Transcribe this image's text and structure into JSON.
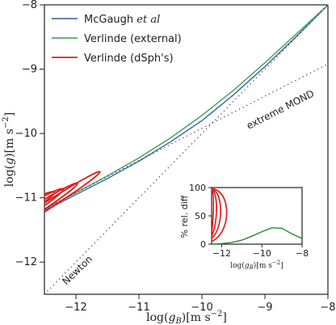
{
  "chart_data": [
    {
      "type": "line",
      "xlabel": "log(g_B)[m s^-2]",
      "ylabel": "log(g)[m s^-2]",
      "xlim": [
        -12.5,
        -8
      ],
      "ylim": [
        -12.5,
        -8
      ],
      "x_ticks": [
        -12,
        -11,
        -10,
        -9,
        -8
      ],
      "y_ticks": [
        -12,
        -11,
        -10,
        -9,
        -8
      ],
      "x_tick_labels": [
        "−12",
        "−11",
        "−10",
        "−9",
        "−8"
      ],
      "y_tick_labels": [
        "−12",
        "−11",
        "−10",
        "−9",
        "−8"
      ],
      "grid": false,
      "legend_position": "top-left",
      "series": [
        {
          "name": "McGaugh et al",
          "color": "#4c72b0",
          "x": [
            -12.5,
            -12,
            -11.5,
            -11,
            -10.5,
            -10,
            -9.5,
            -9,
            -8.5,
            -8
          ],
          "y": [
            -11.2,
            -10.95,
            -10.7,
            -10.43,
            -10.13,
            -9.8,
            -9.4,
            -8.96,
            -8.49,
            -8.0
          ]
        },
        {
          "name": "Verlinde (external)",
          "color": "#55a868",
          "x": [
            -12.5,
            -12,
            -11.5,
            -11,
            -10.5,
            -10,
            -9.5,
            -9,
            -8.5,
            -8
          ],
          "y": [
            -11.18,
            -10.92,
            -10.66,
            -10.38,
            -10.07,
            -9.72,
            -9.33,
            -8.9,
            -8.45,
            -8.0
          ]
        },
        {
          "name": "Verlinde (dSph's)",
          "color": "#e0201b",
          "contours": [
            {
              "x": [
                -12.5,
                -11.3,
                -11.35,
                -12.5
              ],
              "y": [
                -11.08,
                -10.33,
                -10.5,
                -11.22
              ]
            },
            {
              "x": [
                -12.5,
                -11.75,
                -11.85,
                -12.5
              ],
              "y": [
                -11.02,
                -10.6,
                -10.75,
                -11.18
              ]
            },
            {
              "x": [
                -12.5,
                -12.05,
                -12.15,
                -12.5
              ],
              "y": [
                -10.97,
                -10.75,
                -10.88,
                -11.12
              ]
            },
            {
              "x": [
                -12.5,
                -12.25,
                -12.33,
                -12.5
              ],
              "y": [
                -10.94,
                -10.85,
                -10.95,
                -11.06
              ]
            }
          ]
        },
        {
          "name": "extreme MOND",
          "style": "dotted",
          "color": "#222222",
          "x": [
            -12.5,
            -8
          ],
          "y": [
            -11.17,
            -8.92
          ]
        },
        {
          "name": "Newton",
          "style": "dotted",
          "color": "#222222",
          "x": [
            -12.5,
            -8
          ],
          "y": [
            -12.5,
            -8
          ]
        }
      ],
      "annotations": [
        "extreme MOND",
        "Newton"
      ]
    },
    {
      "type": "line",
      "xlabel": "log(g_B)[m s^-2]",
      "ylabel": "% rel. diff",
      "xlim": [
        -12.5,
        -8
      ],
      "ylim": [
        0,
        100
      ],
      "x_ticks": [
        -12,
        -10,
        -8
      ],
      "y_ticks": [
        0,
        50,
        100
      ],
      "x_tick_labels": [
        "−12",
        "−10",
        "−8"
      ],
      "y_tick_labels": [
        "0",
        "50",
        "100"
      ],
      "series": [
        {
          "name": "Verlinde (external)",
          "color": "#2a8a2a",
          "x": [
            -12.5,
            -12,
            -11.5,
            -11,
            -10.5,
            -10,
            -9.5,
            -9,
            -8.5,
            -8
          ],
          "y": [
            0,
            1,
            3,
            7,
            14,
            22,
            29,
            28,
            18,
            10
          ]
        },
        {
          "name": "Verlinde (dSph's)",
          "color": "#e0201b",
          "contours": [
            {
              "x": [
                -12.5,
                -11.5,
                -11.5,
                -12.5
              ],
              "y": [
                98,
                95,
                20,
                5
              ]
            },
            {
              "x": [
                -12.5,
                -11.9,
                -11.9,
                -12.5
              ],
              "y": [
                97,
                93,
                28,
                10
              ]
            },
            {
              "x": [
                -12.5,
                -12.15,
                -12.2,
                -12.5
              ],
              "y": [
                96,
                92,
                35,
                14
              ]
            },
            {
              "x": [
                -12.5,
                -12.35,
                -12.4,
                -12.5
              ],
              "y": [
                95,
                92,
                45,
                20
              ]
            }
          ]
        }
      ]
    }
  ],
  "legend": {
    "items": [
      {
        "label_pre": "McGaugh ",
        "label_it": "et al",
        "color": "#4c72b0"
      },
      {
        "label_pre": "Verlinde (external)",
        "label_it": "",
        "color": "#55a868"
      },
      {
        "label_pre": "Verlinde (dSph's)",
        "label_it": "",
        "color": "#e0201b"
      }
    ]
  },
  "labels": {
    "main_xlabel_pre": "log(",
    "main_xlabel_var": "g",
    "main_xlabel_sub": "B",
    "main_xlabel_post": ")[m s",
    "main_xlabel_exp": "−2",
    "main_xlabel_close": "]",
    "main_ylabel_pre": "log(",
    "main_ylabel_var": "g",
    "main_ylabel_post": ")[m s",
    "main_ylabel_exp": "−2",
    "main_ylabel_close": "]",
    "inset_xlabel_pre": "log(",
    "inset_xlabel_var": "g",
    "inset_xlabel_sub": "B",
    "inset_xlabel_post": ")[m s",
    "inset_xlabel_exp": "−2",
    "inset_xlabel_close": "]",
    "inset_ylabel": "% rel. diff",
    "annot_mond": "extreme MOND",
    "annot_newton": "Newton"
  }
}
